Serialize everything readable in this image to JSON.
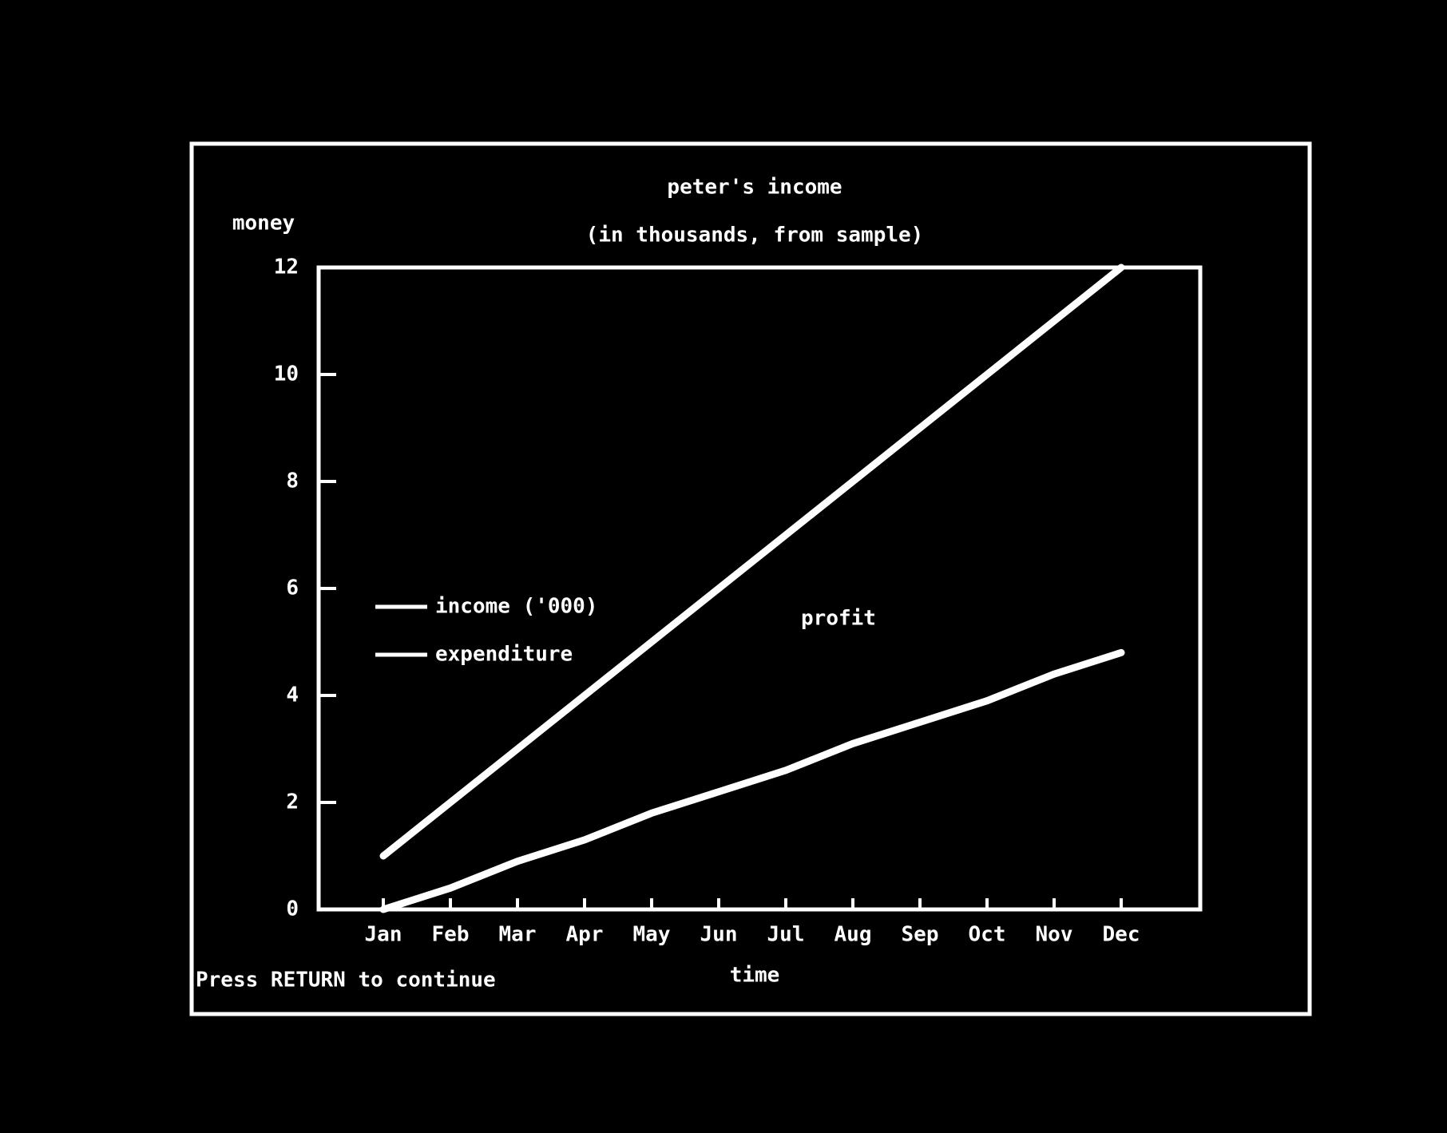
{
  "chart_data": {
    "type": "line",
    "title": "peter's income",
    "subtitle": "(in thousands, from sample)",
    "y_label": "money",
    "x_label": "time",
    "footer": "Press RETURN to continue",
    "annotation": "profit",
    "categories": [
      "Jan",
      "Feb",
      "Mar",
      "Apr",
      "May",
      "Jun",
      "Jul",
      "Aug",
      "Sep",
      "Oct",
      "Nov",
      "Dec"
    ],
    "series": [
      {
        "name": "income ('000)",
        "color": "#ffffff",
        "values": [
          1,
          2,
          3,
          4,
          5,
          6,
          7,
          8,
          9,
          10,
          11,
          12
        ]
      },
      {
        "name": "expenditure",
        "color": "#ffffff",
        "values": [
          0,
          0.4,
          0.9,
          1.3,
          1.8,
          2.2,
          2.6,
          3.1,
          3.5,
          3.9,
          4.4,
          4.8
        ]
      }
    ],
    "ylim": [
      0,
      12
    ],
    "yticks": [
      0,
      2,
      4,
      6,
      8,
      10,
      12
    ],
    "grid": false,
    "legend": "left"
  }
}
